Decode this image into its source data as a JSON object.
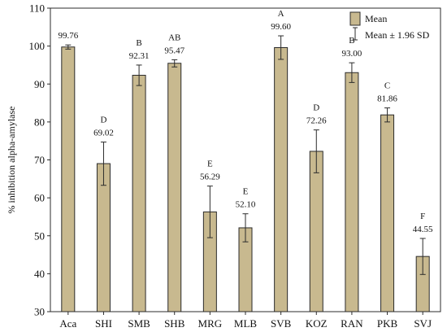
{
  "chart_data": {
    "type": "bar",
    "ylabel": "% inhibition alpha-amylase",
    "xlabel": "",
    "ylim": [
      30,
      110
    ],
    "yticks": [
      "30",
      "40",
      "50",
      "60",
      "70",
      "80",
      "90",
      "100",
      "110"
    ],
    "categories": [
      "Aca",
      "SHI",
      "SMB",
      "SHB",
      "MRG",
      "MLB",
      "SVB",
      "KOZ",
      "RAN",
      "PKB",
      "SVJ"
    ],
    "value_labels": [
      "99.76",
      "69.02",
      "92.31",
      "95.47",
      "56.29",
      "52.10",
      "99.60",
      "72.26",
      "93.00",
      "81.86",
      "44.55"
    ],
    "values": [
      99.76,
      69.02,
      92.31,
      95.47,
      56.29,
      52.1,
      99.6,
      72.26,
      93.0,
      81.86,
      44.55
    ],
    "error_low": [
      99.2,
      63.3,
      89.6,
      94.5,
      49.5,
      48.4,
      96.5,
      66.6,
      90.4,
      80.0,
      39.8
    ],
    "error_high": [
      100.3,
      74.7,
      95.0,
      96.4,
      63.1,
      55.8,
      102.7,
      77.9,
      95.6,
      83.7,
      49.3
    ],
    "letters": [
      "",
      "D",
      "B",
      "AB",
      "E",
      "E",
      "A",
      "D",
      "B",
      "C",
      "F"
    ],
    "legend": {
      "placement": "top-right",
      "mean_label": "Mean",
      "sd_label": "Mean ± 1.96 SD"
    },
    "grid": false,
    "colors": {
      "bar_fill": "#c8b98f",
      "bar_stroke": "#2b2b2b",
      "axis": "#2b2b2b"
    }
  }
}
